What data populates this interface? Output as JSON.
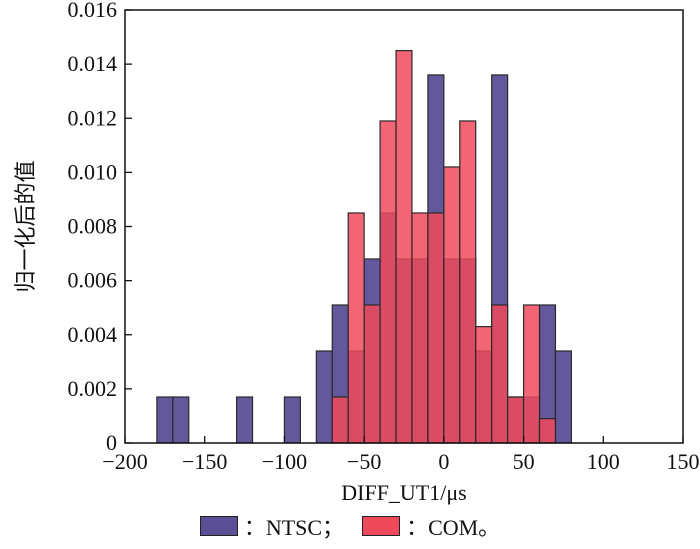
{
  "chart_data": {
    "type": "bar",
    "xlabel": "DIFF_UT1/μs",
    "ylabel": "归一化后的值",
    "xlim": [
      -200,
      150
    ],
    "ylim": [
      0,
      0.016
    ],
    "xticks": [
      -200,
      -150,
      -100,
      -50,
      0,
      50,
      100,
      150
    ],
    "xtick_labels": [
      "−200",
      "−150",
      "−100",
      "−50",
      "0",
      "50",
      "100",
      "150"
    ],
    "yticks": [
      0,
      0.002,
      0.004,
      0.006,
      0.008,
      0.01,
      0.012,
      0.014,
      0.016
    ],
    "ytick_labels": [
      "0",
      "0.002",
      "0.004",
      "0.006",
      "0.008",
      "0.010",
      "0.012",
      "0.014",
      "0.016"
    ],
    "bin_width": 10,
    "series": [
      {
        "name": "NTSC",
        "color": "#5b4f96",
        "bins": [
          {
            "x0": -180,
            "value": 0.0017
          },
          {
            "x0": -170,
            "value": 0.0017
          },
          {
            "x0": -130,
            "value": 0.0017
          },
          {
            "x0": -100,
            "value": 0.0017
          },
          {
            "x0": -80,
            "value": 0.0034
          },
          {
            "x0": -70,
            "value": 0.0051
          },
          {
            "x0": -60,
            "value": 0.0034
          },
          {
            "x0": -50,
            "value": 0.0068
          },
          {
            "x0": -40,
            "value": 0.0085
          },
          {
            "x0": -30,
            "value": 0.0068
          },
          {
            "x0": -20,
            "value": 0.0068
          },
          {
            "x0": -10,
            "value": 0.0136
          },
          {
            "x0": 0,
            "value": 0.0068
          },
          {
            "x0": 10,
            "value": 0.0068
          },
          {
            "x0": 20,
            "value": 0.0034
          },
          {
            "x0": 30,
            "value": 0.0136
          },
          {
            "x0": 40,
            "value": 0.0017
          },
          {
            "x0": 50,
            "value": 0.0017
          },
          {
            "x0": 60,
            "value": 0.0051
          },
          {
            "x0": 70,
            "value": 0.0034
          }
        ]
      },
      {
        "name": "COM",
        "color": "#ee4a5c",
        "bins": [
          {
            "x0": -70,
            "value": 0.0017
          },
          {
            "x0": -60,
            "value": 0.0085
          },
          {
            "x0": -50,
            "value": 0.0051
          },
          {
            "x0": -40,
            "value": 0.0119
          },
          {
            "x0": -30,
            "value": 0.0145
          },
          {
            "x0": -20,
            "value": 0.0085
          },
          {
            "x0": -10,
            "value": 0.0085
          },
          {
            "x0": 0,
            "value": 0.0102
          },
          {
            "x0": 10,
            "value": 0.0119
          },
          {
            "x0": 20,
            "value": 0.0043
          },
          {
            "x0": 30,
            "value": 0.0051
          },
          {
            "x0": 40,
            "value": 0.0017
          },
          {
            "x0": 50,
            "value": 0.0051
          },
          {
            "x0": 60,
            "value": 0.0009
          }
        ]
      }
    ],
    "legend": {
      "position": "bottom",
      "entries": [
        {
          "label": "：NTSC；",
          "color": "#5b4f96"
        },
        {
          "label": "：COM。",
          "color": "#ee4a5c"
        }
      ]
    },
    "grid": false
  }
}
